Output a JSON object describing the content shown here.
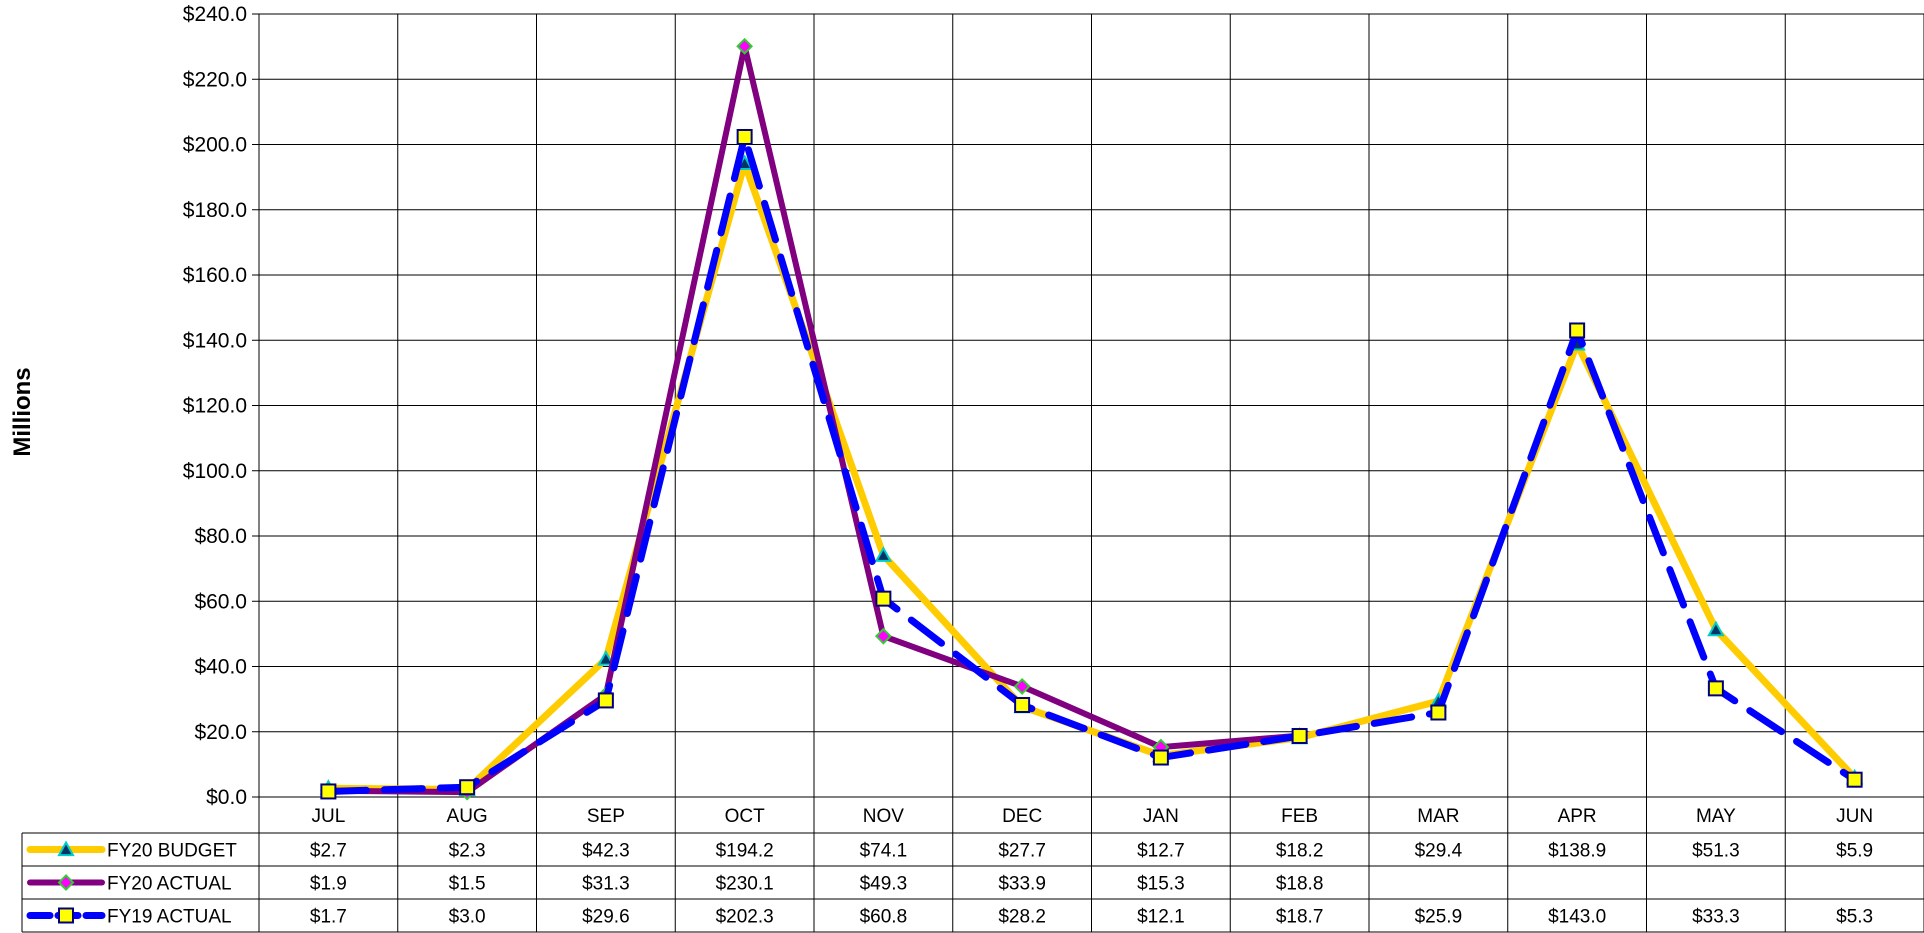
{
  "chart_data": {
    "type": "line",
    "title": "",
    "xlabel": "",
    "ylabel": "Millions",
    "ylim": [
      0,
      240
    ],
    "y_ticks": [
      "$0.0",
      "$20.0",
      "$40.0",
      "$60.0",
      "$80.0",
      "$100.0",
      "$120.0",
      "$140.0",
      "$160.0",
      "$180.0",
      "$200.0",
      "$220.0",
      "$240.0"
    ],
    "grid": true,
    "legend": "data-table-left",
    "categories": [
      "JUL",
      "AUG",
      "SEP",
      "OCT",
      "NOV",
      "DEC",
      "JAN",
      "FEB",
      "MAR",
      "APR",
      "MAY",
      "JUN"
    ],
    "series": [
      {
        "name": "FY20 BUDGET",
        "values": [
          2.7,
          2.3,
          42.3,
          194.2,
          74.1,
          27.7,
          12.7,
          18.2,
          29.4,
          138.9,
          51.3,
          5.9
        ],
        "labels": [
          "$2.7",
          "$2.3",
          "$42.3",
          "$194.2",
          "$74.1",
          "$27.7",
          "$12.7",
          "$18.2",
          "$29.4",
          "$138.9",
          "$51.3",
          "$5.9"
        ],
        "color": "#FFCC00",
        "marker": "triangle",
        "marker_fill": "#003366",
        "marker_stroke": "#00CCCC",
        "dash": "solid",
        "width": 7
      },
      {
        "name": "FY20 ACTUAL",
        "values": [
          1.9,
          1.5,
          31.3,
          230.1,
          49.3,
          33.9,
          15.3,
          18.8,
          null,
          null,
          null,
          null
        ],
        "labels": [
          "$1.9",
          "$1.5",
          "$31.3",
          "$230.1",
          "$49.3",
          "$33.9",
          "$15.3",
          "$18.8",
          "",
          "",
          "",
          ""
        ],
        "color": "#800080",
        "marker": "diamond",
        "marker_fill": "#FF00FF",
        "marker_stroke": "#33CC33",
        "dash": "solid",
        "width": 6
      },
      {
        "name": "FY19 ACTUAL",
        "values": [
          1.7,
          3.0,
          29.6,
          202.3,
          60.8,
          28.2,
          12.1,
          18.7,
          25.9,
          143.0,
          33.3,
          5.3
        ],
        "labels": [
          "$1.7",
          "$3.0",
          "$29.6",
          "$202.3",
          "$60.8",
          "$28.2",
          "$12.1",
          "$18.7",
          "$25.9",
          "$143.0",
          "$33.3",
          "$5.3"
        ],
        "color": "#0000FF",
        "marker": "square",
        "marker_fill": "#FFFF00",
        "marker_stroke": "#000080",
        "dash": "dashed",
        "width": 7
      }
    ]
  }
}
